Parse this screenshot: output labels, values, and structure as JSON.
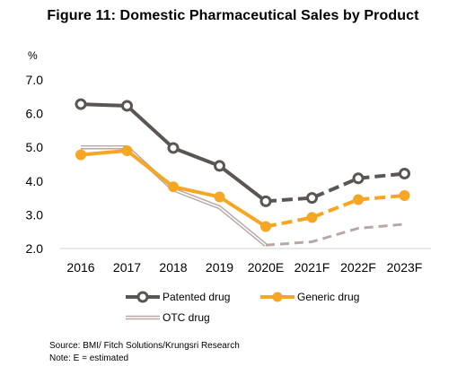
{
  "title": "Figure 11: Domestic Pharmaceutical Sales by Product",
  "source": "Source: BMI/ Fitch Solutions/Krungsri Research",
  "note": "Note: E = estimated",
  "chart_data": {
    "type": "line",
    "ylabel": "%",
    "ylim": [
      2.0,
      7.0
    ],
    "yticks": [
      "2.0",
      "3.0",
      "4.0",
      "5.0",
      "6.0",
      "7.0"
    ],
    "categories": [
      "2016",
      "2017",
      "2018",
      "2019",
      "2020E",
      "2021F",
      "2022F",
      "2023F"
    ],
    "dashed_from_index": 4,
    "grid": false,
    "legend": "bottom",
    "series": [
      {
        "name": "Patented drug",
        "values": [
          6.28,
          6.23,
          4.98,
          4.45,
          3.4,
          3.5,
          4.08,
          4.22
        ],
        "color": "#5b5554",
        "style": "circle-open"
      },
      {
        "name": "Generic drug",
        "values": [
          4.78,
          4.9,
          3.83,
          3.53,
          2.65,
          2.92,
          3.45,
          3.57
        ],
        "color": "#f5a623",
        "style": "circle-filled"
      },
      {
        "name": "OTC drug",
        "values": [
          5.0,
          5.0,
          3.75,
          3.22,
          2.1,
          2.2,
          2.6,
          2.72
        ],
        "color": "#b7a8a6",
        "style": "double-line"
      }
    ]
  }
}
